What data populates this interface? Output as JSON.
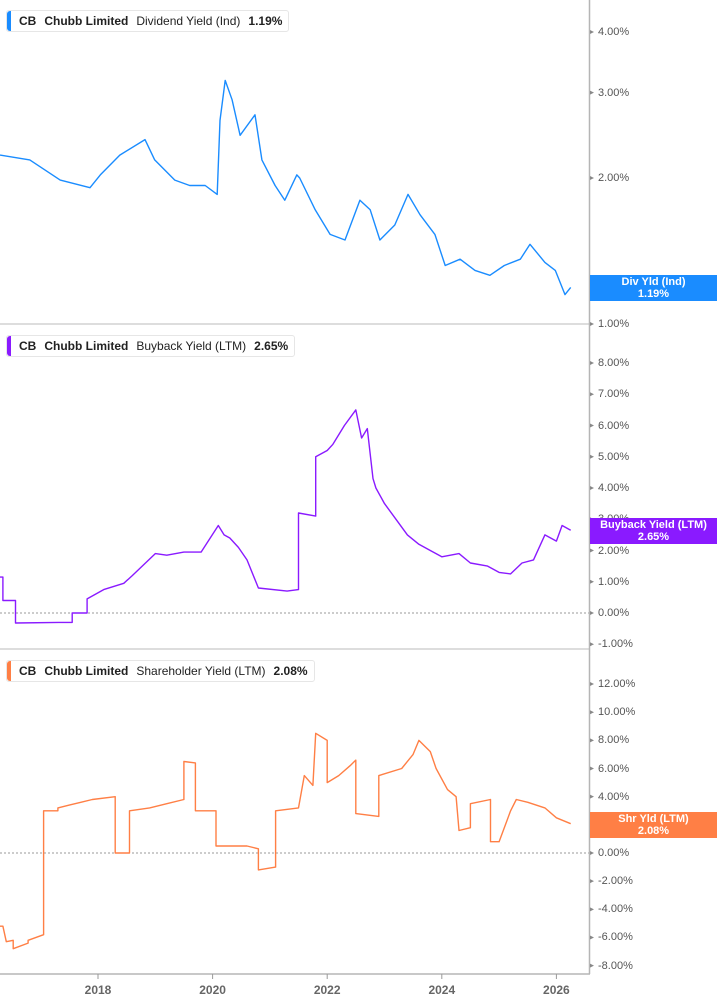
{
  "panels": [
    {
      "ticker": "CB",
      "company": "Chubb Limited",
      "metric": "Dividend Yield (Ind)",
      "value": "1.19%",
      "color": "#1a8cff",
      "tag_label": "Div Yld (Ind)",
      "tag_value": "1.19%",
      "y_ticks": [
        "4.00%",
        "3.00%",
        "2.00%",
        "1.00%"
      ]
    },
    {
      "ticker": "CB",
      "company": "Chubb Limited",
      "metric": "Buyback Yield (LTM)",
      "value": "2.65%",
      "color": "#8a1aff",
      "tag_label": "Buyback Yield (LTM)",
      "tag_value": "2.65%",
      "y_ticks": [
        "8.00%",
        "7.00%",
        "6.00%",
        "5.00%",
        "4.00%",
        "3.00%",
        "2.00%",
        "1.00%",
        "0.00%",
        "-1.00%"
      ]
    },
    {
      "ticker": "CB",
      "company": "Chubb Limited",
      "metric": "Shareholder Yield (LTM)",
      "value": "2.08%",
      "color": "#ff7f45",
      "tag_label": "Shr Yld (LTM)",
      "tag_value": "2.08%",
      "y_ticks": [
        "12.00%",
        "10.00%",
        "8.00%",
        "6.00%",
        "4.00%",
        "2.00%",
        "0.00%",
        "-2.00%",
        "-4.00%",
        "-6.00%",
        "-8.00%"
      ]
    }
  ],
  "x_axis": {
    "ticks": [
      "2018",
      "2020",
      "2022",
      "2024",
      "2026"
    ]
  },
  "chart_data": [
    {
      "type": "line",
      "title": "CB Chubb Limited Dividend Yield (Ind) 1.19%",
      "xlabel": "",
      "ylabel": "Dividend Yield (Ind)",
      "yscale": "log",
      "ylim": [
        0.95,
        4.4
      ],
      "y_ticks": [
        1,
        2,
        3,
        4
      ],
      "x_ticks": [
        2018,
        2020,
        2022,
        2024,
        2026
      ],
      "legend_position": "top-left",
      "series": [
        {
          "name": "Div Yld (Ind)",
          "color": "#1a8cff",
          "x": [
            2016.29,
            2016.81,
            2017.34,
            2017.86,
            2018.04,
            2018.38,
            2018.82,
            2018.99,
            2019.34,
            2019.6,
            2019.87,
            2020.08,
            2020.13,
            2020.22,
            2020.34,
            2020.48,
            2020.74,
            2020.86,
            2021.09,
            2021.26,
            2021.47,
            2021.52,
            2021.79,
            2022.05,
            2022.31,
            2022.57,
            2022.75,
            2022.92,
            2023.18,
            2023.41,
            2023.62,
            2023.88,
            2024.06,
            2024.32,
            2024.58,
            2024.84,
            2025.09,
            2025.37,
            2025.54,
            2025.8,
            2025.98,
            2026.15,
            2026.25
          ],
          "y": [
            2.23,
            2.18,
            1.98,
            1.91,
            2.03,
            2.23,
            2.4,
            2.18,
            1.98,
            1.93,
            1.93,
            1.85,
            2.63,
            3.18,
            2.9,
            2.45,
            2.7,
            2.18,
            1.93,
            1.8,
            2.03,
            2.0,
            1.72,
            1.53,
            1.49,
            1.8,
            1.72,
            1.49,
            1.6,
            1.85,
            1.68,
            1.53,
            1.32,
            1.36,
            1.29,
            1.26,
            1.32,
            1.36,
            1.46,
            1.34,
            1.29,
            1.15,
            1.19
          ]
        }
      ]
    },
    {
      "type": "line",
      "title": "CB Chubb Limited Buyback Yield (LTM) 2.65%",
      "xlabel": "",
      "ylabel": "Buyback Yield (LTM)",
      "ylim": [
        -1.2,
        9.0
      ],
      "x_ticks": [
        2018,
        2020,
        2022,
        2024,
        2026
      ],
      "reference_line": 0,
      "legend_position": "top-left",
      "series": [
        {
          "name": "Buyback Yield (LTM)",
          "color": "#8a1aff",
          "x": [
            2016.29,
            2016.34,
            2016.34,
            2016.56,
            2016.56,
            2017.31,
            2017.31,
            2017.55,
            2017.55,
            2017.81,
            2017.81,
            2018.1,
            2018.45,
            2018.6,
            2019.0,
            2019.2,
            2019.5,
            2019.8,
            2020.1,
            2020.2,
            2020.3,
            2020.45,
            2020.6,
            2020.8,
            2020.8,
            2021.3,
            2021.5,
            2021.5,
            2021.8,
            2021.8,
            2022.0,
            2022.1,
            2022.3,
            2022.5,
            2022.6,
            2022.7,
            2022.8,
            2022.85,
            2023.0,
            2023.2,
            2023.4,
            2023.6,
            2023.8,
            2024.0,
            2024.3,
            2024.5,
            2024.8,
            2025.0,
            2025.2,
            2025.4,
            2025.6,
            2025.75,
            2025.8,
            2026.0,
            2026.1,
            2026.25
          ],
          "y": [
            1.15,
            1.15,
            0.4,
            0.4,
            -0.32,
            -0.3,
            -0.3,
            -0.3,
            0.0,
            0.0,
            0.45,
            0.75,
            0.95,
            1.2,
            1.9,
            1.85,
            1.95,
            1.95,
            2.8,
            2.5,
            2.4,
            2.1,
            1.7,
            0.8,
            0.8,
            0.7,
            0.75,
            3.2,
            3.1,
            5.0,
            5.2,
            5.4,
            6.0,
            6.5,
            5.6,
            5.9,
            4.3,
            4.0,
            3.5,
            3.0,
            2.5,
            2.2,
            2.0,
            1.8,
            1.9,
            1.6,
            1.5,
            1.3,
            1.25,
            1.6,
            1.7,
            2.3,
            2.5,
            2.3,
            2.8,
            2.65
          ]
        }
      ]
    },
    {
      "type": "line",
      "title": "CB Chubb Limited Shareholder Yield (LTM) 2.08%",
      "xlabel": "",
      "ylabel": "Shareholder Yield (LTM)",
      "ylim": [
        -8.8,
        12.9
      ],
      "x_ticks": [
        2018,
        2020,
        2022,
        2024,
        2026
      ],
      "reference_line": 0,
      "legend_position": "top-left",
      "series": [
        {
          "name": "Shr Yld (LTM)",
          "color": "#ff7f45",
          "x": [
            2016.29,
            2016.34,
            2016.4,
            2016.52,
            2016.52,
            2016.78,
            2016.78,
            2017.05,
            2017.05,
            2017.3,
            2017.3,
            2017.5,
            2017.7,
            2017.9,
            2018.3,
            2018.3,
            2018.55,
            2018.55,
            2018.9,
            2019.2,
            2019.5,
            2019.5,
            2019.7,
            2019.7,
            2020.06,
            2020.06,
            2020.6,
            2020.8,
            2020.8,
            2021.1,
            2021.1,
            2021.5,
            2021.6,
            2021.75,
            2021.8,
            2022.0,
            2022.0,
            2022.2,
            2022.4,
            2022.5,
            2022.5,
            2022.9,
            2022.9,
            2023.3,
            2023.5,
            2023.6,
            2023.8,
            2023.9,
            2024.1,
            2024.25,
            2024.3,
            2024.5,
            2024.5,
            2024.85,
            2024.85,
            2025.0,
            2025.2,
            2025.3,
            2025.5,
            2025.8,
            2026.0,
            2026.25
          ],
          "y": [
            -5.2,
            -5.2,
            -6.3,
            -6.2,
            -6.8,
            -6.4,
            -6.2,
            -5.8,
            3.0,
            3.0,
            3.2,
            3.4,
            3.6,
            3.8,
            4.0,
            0.0,
            0.0,
            3.0,
            3.2,
            3.5,
            3.8,
            6.5,
            6.4,
            3.0,
            3.0,
            0.5,
            0.5,
            0.3,
            -1.2,
            -1.0,
            3.0,
            3.2,
            5.5,
            4.8,
            8.5,
            8.0,
            5.0,
            5.5,
            6.2,
            6.6,
            2.8,
            2.6,
            5.5,
            6.0,
            7.0,
            8.0,
            7.2,
            6.0,
            4.5,
            4.0,
            1.6,
            1.8,
            3.5,
            3.8,
            0.8,
            0.8,
            3.0,
            3.8,
            3.6,
            3.2,
            2.5,
            2.08
          ]
        }
      ]
    }
  ]
}
